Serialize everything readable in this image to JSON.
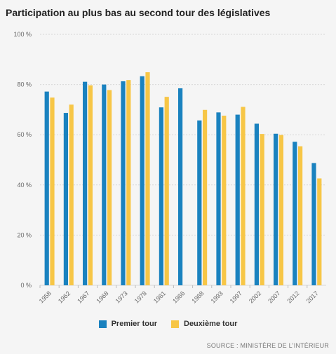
{
  "colors": {
    "premier": "#1a82bf",
    "deuxieme": "#f7c646",
    "grid": "#d8d8d8",
    "tick_text": "#666666"
  },
  "chart_data": {
    "type": "bar",
    "title": "Participation au plus bas au second tour des législatives",
    "source": "SOURCE : MINISTÈRE DE L'INTÉRIEUR",
    "xlabel": "",
    "ylabel": "",
    "ylim": [
      0,
      100
    ],
    "yticks": [
      0,
      20,
      40,
      60,
      80,
      100
    ],
    "ytick_labels": [
      "0 %",
      "20 %",
      "40 %",
      "60 %",
      "80 %",
      "100 %"
    ],
    "grid": true,
    "legend_position": "bottom",
    "categories": [
      "1958",
      "1962",
      "1967",
      "1968",
      "1973",
      "1978",
      "1981",
      "1986",
      "1988",
      "1993",
      "1997",
      "2002",
      "2007",
      "2012",
      "2017"
    ],
    "series": [
      {
        "name": "Premier tour",
        "color": "#1a82bf",
        "values": [
          77.2,
          68.7,
          81.1,
          80.0,
          81.3,
          83.3,
          70.9,
          78.5,
          65.7,
          68.9,
          68.0,
          64.4,
          60.4,
          57.2,
          48.7
        ]
      },
      {
        "name": "Deuxième tour",
        "color": "#f7c646",
        "values": [
          74.8,
          72.0,
          79.7,
          77.8,
          81.8,
          84.9,
          75.1,
          null,
          69.9,
          67.6,
          71.1,
          60.3,
          59.9,
          55.4,
          42.6
        ]
      }
    ]
  }
}
